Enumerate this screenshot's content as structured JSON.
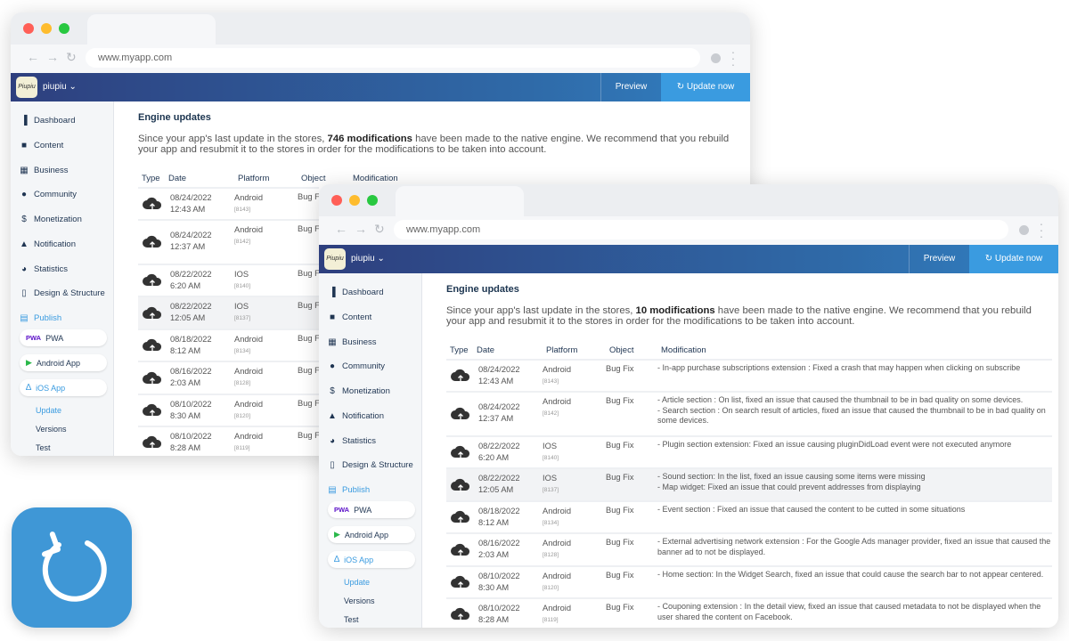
{
  "browser": {
    "url": "www.myapp.com"
  },
  "app": {
    "name": "piupiu",
    "logo_text": "Piupiu",
    "preview_label": "Preview",
    "update_label": "Update now",
    "accent": "#3a9be0",
    "header_gradient": [
      "#2e3f7e",
      "#3180c2"
    ]
  },
  "sidebar": {
    "items": [
      {
        "label": "Dashboard",
        "icon": "bar-chart-icon"
      },
      {
        "label": "Content",
        "icon": "document-icon"
      },
      {
        "label": "Business",
        "icon": "store-icon"
      },
      {
        "label": "Community",
        "icon": "user-icon"
      },
      {
        "label": "Monetization",
        "icon": "dollar-icon"
      },
      {
        "label": "Notification",
        "icon": "bell-icon"
      },
      {
        "label": "Statistics",
        "icon": "pie-chart-icon"
      },
      {
        "label": "Design & Structure",
        "icon": "phone-icon"
      },
      {
        "label": "Publish",
        "icon": "shop-icon"
      }
    ],
    "publish_targets": [
      {
        "label": "PWA",
        "icon": "pwa-icon",
        "badge": "PWA"
      },
      {
        "label": "Android App",
        "icon": "play-store-icon"
      },
      {
        "label": "iOS App",
        "icon": "app-store-icon"
      }
    ],
    "sub_items": [
      "Update",
      "Versions",
      "Test"
    ]
  },
  "windows": [
    {
      "title": "Engine updates",
      "desc_before": "Since your app's last update in the stores, ",
      "count": "746 modifications",
      "desc_after": " have been made to the native engine. We recommend that you rebuild your app and resubmit it to the stores in order for the modifications to be taken into account."
    },
    {
      "title": "Engine updates",
      "desc_before": "Since your app's last update in the stores, ",
      "count": "10 modifications",
      "desc_after": " have been made to the native engine. We recommend that you rebuild your app and resubmit it to the stores in order for the modifications to be taken into account."
    }
  ],
  "table": {
    "headers": [
      "Type",
      "Date",
      "Platform",
      "Object",
      "Modification"
    ],
    "rows": [
      {
        "date": "08/24/2022",
        "time": "12:43 AM",
        "platform": "Android",
        "build": "[8143]",
        "object": "Bug Fix",
        "mods": [
          "- In-app purchase subscriptions extension : Fixed a crash that may happen when clicking on subscribe"
        ]
      },
      {
        "date": "08/24/2022",
        "time": "12:37 AM",
        "platform": "Android",
        "build": "[8142]",
        "object": "Bug Fix",
        "mods": [
          "- Article section : On list, fixed an issue that caused the thumbnail to be in bad quality on some devices.",
          "- Search section : On search result of articles, fixed an issue that caused the thumbnail to be in bad quality on some devices."
        ]
      },
      {
        "date": "08/22/2022",
        "time": "6:20 AM",
        "platform": "IOS",
        "build": "[8140]",
        "object": "Bug Fix",
        "mods": [
          "- Plugin section extension: Fixed an issue causing pluginDidLoad event were not executed anymore"
        ]
      },
      {
        "date": "08/22/2022",
        "time": "12:05 AM",
        "platform": "IOS",
        "build": "[8137]",
        "object": "Bug Fix",
        "mods": [
          "- Sound section: In the list, fixed an issue causing some items were missing",
          "- Map widget: Fixed an issue that could prevent addresses from displaying"
        ]
      },
      {
        "date": "08/18/2022",
        "time": "8:12 AM",
        "platform": "Android",
        "build": "[8134]",
        "object": "Bug Fix",
        "mods": [
          "- Event section : Fixed an issue that caused the content to be cutted in some situations"
        ]
      },
      {
        "date": "08/16/2022",
        "time": "2:03 AM",
        "platform": "Android",
        "build": "[8128]",
        "object": "Bug Fix",
        "mods": [
          "- External advertising network extension : For the Google Ads manager provider, fixed an issue that caused the banner ad to not be displayed."
        ]
      },
      {
        "date": "08/10/2022",
        "time": "8:30 AM",
        "platform": "Android",
        "build": "[8120]",
        "object": "Bug Fix",
        "mods": [
          "- Home section: In the Widget Search, fixed an issue that could cause the search bar to not appear centered."
        ]
      },
      {
        "date": "08/10/2022",
        "time": "8:28 AM",
        "platform": "Android",
        "build": "[8119]",
        "object": "Bug Fix",
        "mods": [
          "- Couponing extension : In the detail view, fixed an issue that caused metadata to not be displayed when the user shared the content on Facebook."
        ]
      }
    ]
  },
  "badge_icon": {
    "icon": "refresh-icon",
    "color": "#3f97d6"
  }
}
